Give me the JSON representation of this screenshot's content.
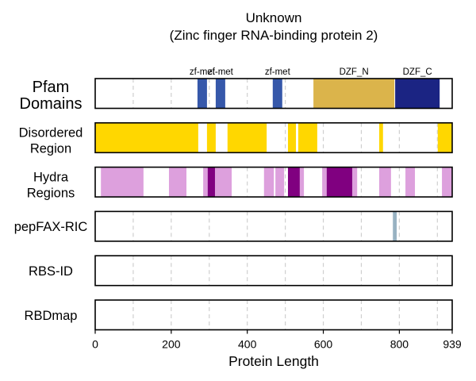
{
  "chart_data": {
    "type": "bar",
    "title": "Unknown",
    "subtitle": "(Zinc finger RNA-binding protein 2)",
    "xlabel": "Protein Length",
    "xlim": [
      0,
      939
    ],
    "xticks": [
      0,
      200,
      400,
      600,
      800,
      939
    ],
    "grid": true,
    "gridlines": [
      100,
      200,
      300,
      400,
      500,
      600,
      700,
      800,
      900
    ],
    "tracks": [
      {
        "label_lines": [
          "Pfam",
          "Domains"
        ],
        "segments": [
          {
            "label": "zf-met",
            "start": 269,
            "end": 294,
            "color": "#3658AA"
          },
          {
            "label": "zf-met",
            "start": 317,
            "end": 342,
            "color": "#3658AA"
          },
          {
            "label": "zf-met",
            "start": 467,
            "end": 492,
            "color": "#3658AA"
          },
          {
            "label": "DZF_N",
            "start": 574,
            "end": 787,
            "color": "#DBB44B"
          },
          {
            "label": "DZF_C",
            "start": 789,
            "end": 906,
            "color": "#1B2483"
          }
        ]
      },
      {
        "label_lines": [
          "Disordered",
          "Region"
        ],
        "segments": [
          {
            "start": 0,
            "end": 271,
            "color": "#FFD700"
          },
          {
            "start": 294,
            "end": 317,
            "color": "#FFD700"
          },
          {
            "start": 348,
            "end": 451,
            "color": "#FFD700"
          },
          {
            "start": 507,
            "end": 528,
            "color": "#FFD700"
          },
          {
            "start": 534,
            "end": 584,
            "color": "#FFD700"
          },
          {
            "start": 747,
            "end": 757,
            "color": "#FFD700"
          },
          {
            "start": 901,
            "end": 939,
            "color": "#FFD700"
          }
        ]
      },
      {
        "label_lines": [
          "Hydra",
          "Regions"
        ],
        "segments": [
          {
            "start": 15,
            "end": 127,
            "color": "#DDA0DD"
          },
          {
            "start": 194,
            "end": 240,
            "color": "#DDA0DD"
          },
          {
            "start": 284,
            "end": 359,
            "color": "#DDA0DD"
          },
          {
            "start": 444,
            "end": 470,
            "color": "#DDA0DD"
          },
          {
            "start": 474,
            "end": 497,
            "color": "#DDA0DD"
          },
          {
            "start": 507,
            "end": 549,
            "color": "#DDA0DD"
          },
          {
            "start": 597,
            "end": 689,
            "color": "#DDA0DD"
          },
          {
            "start": 747,
            "end": 778,
            "color": "#DDA0DD"
          },
          {
            "start": 816,
            "end": 841,
            "color": "#DDA0DD"
          },
          {
            "start": 912,
            "end": 939,
            "color": "#DDA0DD"
          },
          {
            "start": 296,
            "end": 315,
            "color": "#800080"
          },
          {
            "start": 507,
            "end": 538,
            "color": "#800080"
          },
          {
            "start": 609,
            "end": 676,
            "color": "#800080"
          }
        ]
      },
      {
        "label_lines": [
          "pepFAX-RIC"
        ],
        "segments": [
          {
            "start": 783,
            "end": 793,
            "color": "#98B2C2"
          }
        ]
      },
      {
        "label_lines": [
          "RBS-ID"
        ],
        "segments": []
      },
      {
        "label_lines": [
          "RBDmap"
        ],
        "segments": []
      }
    ]
  }
}
